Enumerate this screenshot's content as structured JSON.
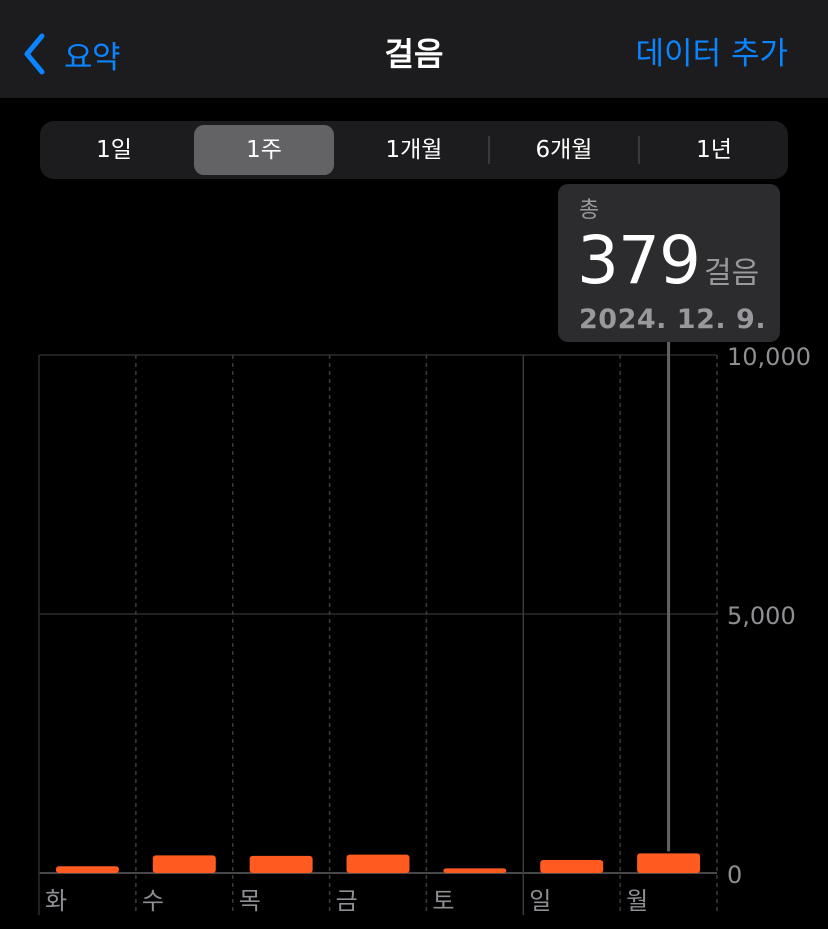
{
  "nav": {
    "back_label": "요약",
    "title": "걸음",
    "action_label": "데이터 추가"
  },
  "segments": [
    {
      "label": "1일",
      "active": false
    },
    {
      "label": "1주",
      "active": true
    },
    {
      "label": "1개월",
      "active": false
    },
    {
      "label": "6개월",
      "active": false
    },
    {
      "label": "1년",
      "active": false
    }
  ],
  "tooltip": {
    "label": "총",
    "value": "379",
    "unit": "걸음",
    "date": "2024. 12. 9."
  },
  "colors": {
    "accent": "#0a84ff",
    "bar": "#ff5a1f",
    "background": "#000000",
    "surface": "#1c1c1e"
  },
  "chart_data": {
    "type": "bar",
    "categories": [
      "화",
      "수",
      "목",
      "금",
      "토",
      "일",
      "월"
    ],
    "values": [
      130,
      340,
      330,
      355,
      90,
      250,
      379
    ],
    "ylim": [
      0,
      10000
    ],
    "yticks": [
      {
        "value": 10000,
        "label": "10,000"
      },
      {
        "value": 5000,
        "label": "5,000"
      },
      {
        "value": 0,
        "label": "0"
      }
    ],
    "selected_category": "월",
    "grid": true,
    "xlabel": "",
    "ylabel": ""
  }
}
